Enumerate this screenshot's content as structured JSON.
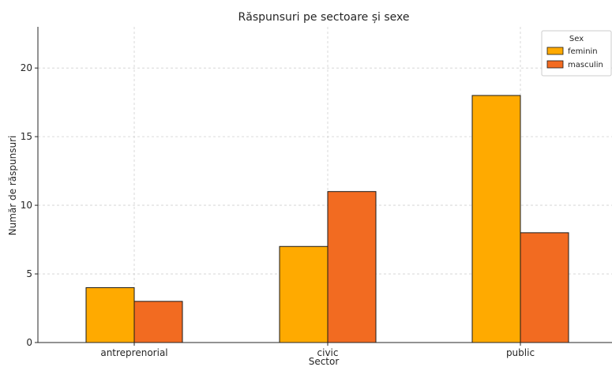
{
  "chart_data": {
    "type": "bar",
    "title": "Răspunsuri pe sectoare și sexe",
    "xlabel": "Sector",
    "ylabel": "Număr de răspunsuri",
    "categories": [
      "antreprenorial",
      "civic",
      "public"
    ],
    "series": [
      {
        "name": "feminin",
        "values": [
          4,
          7,
          18
        ],
        "color": "#FFAA00"
      },
      {
        "name": "masculin",
        "values": [
          3,
          11,
          8
        ],
        "color": "#F26B21"
      }
    ],
    "ylim": [
      0,
      23
    ],
    "yticks": [
      0,
      5,
      10,
      15,
      20
    ],
    "grid": true,
    "legend": {
      "title": "Sex",
      "position": "top-right"
    }
  }
}
